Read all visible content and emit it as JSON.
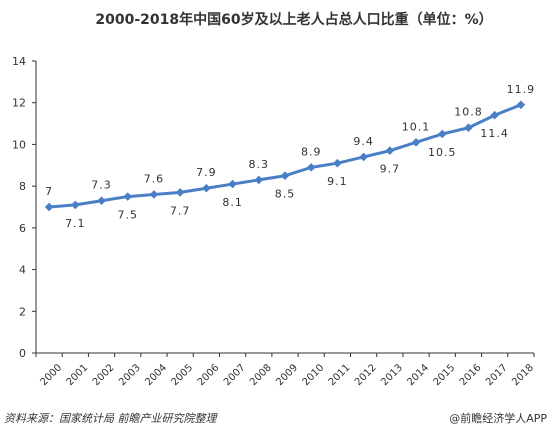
{
  "chart_data": {
    "type": "line",
    "title": "2000-2018年中国60岁及以上老人占总人口比重（单位：%）",
    "xlabel": "",
    "ylabel": "",
    "categories": [
      "2000",
      "2001",
      "2002",
      "2003",
      "2004",
      "2005",
      "2006",
      "2007",
      "2008",
      "2009",
      "2010",
      "2011",
      "2012",
      "2013",
      "2014",
      "2015",
      "2016",
      "2017",
      "2018"
    ],
    "series": [
      {
        "values": [
          7,
          7.1,
          7.3,
          7.5,
          7.6,
          7.7,
          7.9,
          8.1,
          8.3,
          8.5,
          8.9,
          9.1,
          9.4,
          9.7,
          10.1,
          10.5,
          10.8,
          11.4,
          11.9
        ]
      }
    ],
    "data_labels": [
      "7",
      "7.1",
      "7.3",
      "7.5",
      "7.6",
      "7.7",
      "7.9",
      "8.1",
      "8.3",
      "8.5",
      "8.9",
      "9.1",
      "9.4",
      "9.7",
      "10.1",
      "10.5",
      "10.8",
      "11.4",
      "11.9"
    ],
    "ylim": [
      0,
      14
    ],
    "yticks": [
      0,
      2,
      4,
      6,
      8,
      10,
      12,
      14
    ],
    "grid": false,
    "legend": "none",
    "line_color": "#4a7fc6"
  },
  "footer": {
    "source": "资料来源：国家统计局  前瞻产业研究院整理",
    "credit": "@前瞻经济学人APP"
  }
}
